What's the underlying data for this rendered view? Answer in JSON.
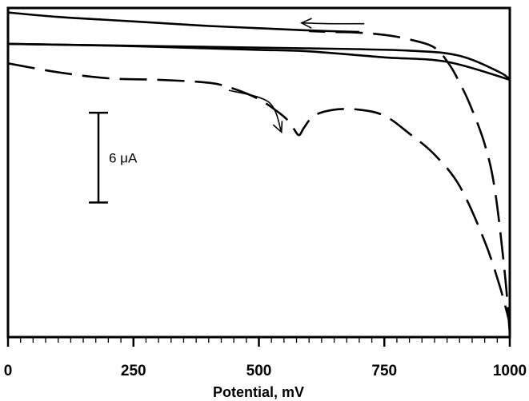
{
  "chart_data": {
    "type": "line",
    "title": "",
    "xlabel": "Potential, mV",
    "ylabel": "",
    "xlim": [
      0,
      1000
    ],
    "x_ticks": [
      0,
      250,
      500,
      750,
      1000
    ],
    "x_tick_labels": [
      "0",
      "250",
      "500",
      "750",
      "1000"
    ],
    "minor_tick_step": 25,
    "ylim": [
      -19.5,
      2.5
    ],
    "grid": false,
    "legend": "none",
    "scale_bar": {
      "label": "6 μA",
      "value": 6,
      "from": -10.5,
      "to": -4.5
    },
    "series": [
      {
        "style": "solid",
        "x": [
          1000,
          875,
          750,
          600,
          500,
          400,
          250,
          100,
          0
        ],
        "y": [
          -2.3,
          -1.1,
          -0.8,
          -0.4,
          -0.3,
          -0.2,
          -0.05,
          0.05,
          0.1
        ]
      },
      {
        "style": "solid",
        "x": [
          0,
          200,
          400,
          600,
          800,
          900,
          980,
          1000
        ],
        "y": [
          0.1,
          0,
          -0.1,
          -0.2,
          -0.35,
          -0.7,
          -1.8,
          -2.3
        ]
      },
      {
        "style": "solid",
        "x": [
          0,
          100,
          200,
          300,
          400,
          500,
          600,
          700
        ],
        "y": [
          2.2,
          1.9,
          1.7,
          1.5,
          1.3,
          1.15,
          1.0,
          0.9
        ]
      },
      {
        "style": "dashed",
        "x": [
          0,
          100,
          200,
          300,
          400,
          450,
          500,
          540,
          560,
          570,
          580,
          590,
          610,
          650,
          700,
          750,
          800,
          850,
          900,
          950,
          980,
          1000
        ],
        "y": [
          -1.2,
          -1.8,
          -2.2,
          -2.3,
          -2.5,
          -2.9,
          -3.6,
          -4.5,
          -5.1,
          -5.6,
          -6.0,
          -5.5,
          -4.7,
          -4.3,
          -4.3,
          -4.7,
          -5.9,
          -7.3,
          -9.4,
          -13.1,
          -16.1,
          -18.6
        ]
      },
      {
        "style": "dashed",
        "x": [
          1000,
          990,
          970,
          950,
          920,
          900,
          880,
          850,
          800,
          750,
          700,
          650,
          600
        ],
        "y": [
          -19.3,
          -15.2,
          -9.6,
          -6.6,
          -3.9,
          -2.5,
          -1.3,
          -0.15,
          0.4,
          0.7,
          0.85,
          0.9,
          0.95
        ]
      }
    ],
    "annotations": [
      {
        "type": "arrow",
        "points": [
          [
            440,
            -3.0
          ],
          [
            520,
            -3.8
          ],
          [
            545,
            -5.8
          ]
        ]
      },
      {
        "type": "arrow",
        "points": [
          [
            710,
            1.45
          ],
          [
            640,
            1.45
          ],
          [
            585,
            1.5
          ]
        ]
      }
    ]
  }
}
